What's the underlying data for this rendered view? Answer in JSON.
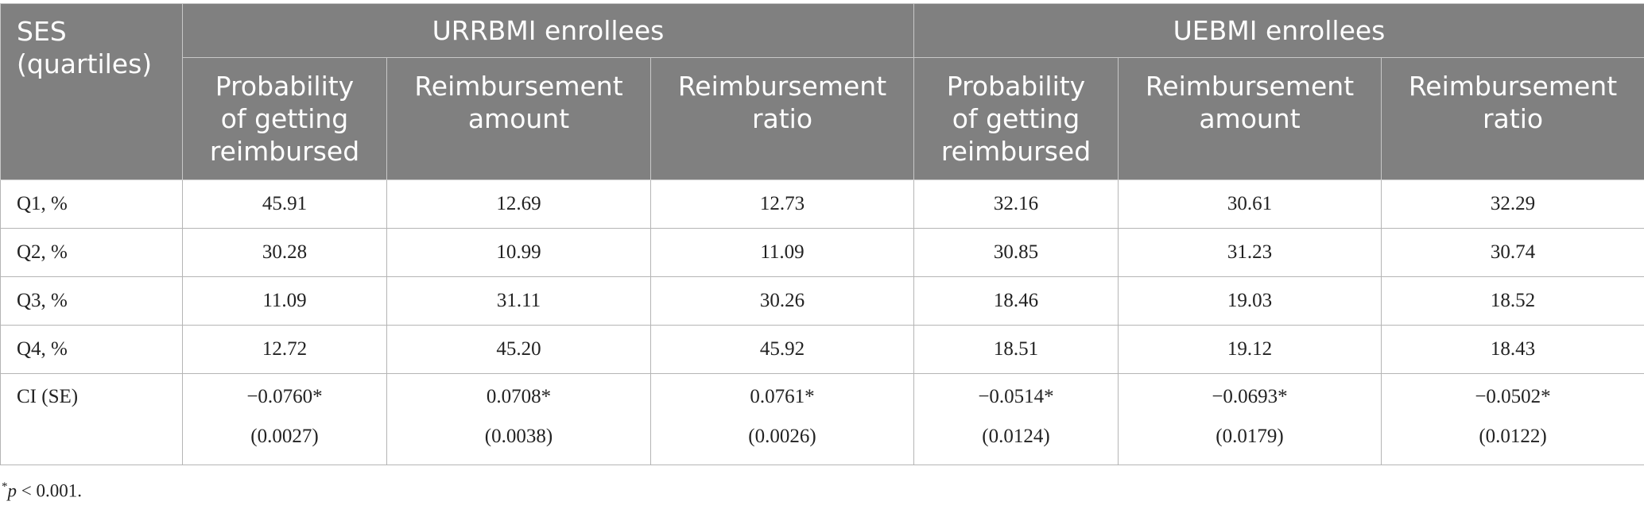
{
  "header": {
    "ses_label_line1": "SES",
    "ses_label_line2": "(quartiles)",
    "group_urrbmi": "URRBMI enrollees",
    "group_uebmi": "UEBMI enrollees",
    "subcolumns": [
      {
        "line1": "Probability",
        "line2": "of getting",
        "line3": "reimbursed"
      },
      {
        "line1": "Reimbursement",
        "line2": "amount"
      },
      {
        "line1": "Reimbursement",
        "line2": "ratio"
      },
      {
        "line1": "Probability",
        "line2": "of getting",
        "line3": "reimbursed"
      },
      {
        "line1": "Reimbursement",
        "line2": "amount"
      },
      {
        "line1": "Reimbursement",
        "line2": "ratio"
      }
    ]
  },
  "rows": [
    {
      "label": "Q1, %",
      "values": [
        "45.91",
        "12.69",
        "12.73",
        "32.16",
        "30.61",
        "32.29"
      ]
    },
    {
      "label": "Q2, %",
      "values": [
        "30.28",
        "10.99",
        "11.09",
        "30.85",
        "31.23",
        "30.74"
      ]
    },
    {
      "label": "Q3, %",
      "values": [
        "11.09",
        "31.11",
        "30.26",
        "18.46",
        "19.03",
        "18.52"
      ]
    },
    {
      "label": "Q4, %",
      "values": [
        "12.72",
        "45.20",
        "45.92",
        "18.51",
        "19.12",
        "18.43"
      ]
    }
  ],
  "ci_row": {
    "label": "CI (SE)",
    "values": [
      "−0.0760*",
      "0.0708*",
      "0.0761*",
      "−0.0514*",
      "−0.0693*",
      "−0.0502*"
    ],
    "se": [
      "(0.0027)",
      "(0.0038)",
      "(0.0026)",
      "(0.0124)",
      "(0.0179)",
      "(0.0122)"
    ]
  },
  "footnote": {
    "marker": "*",
    "p": "p",
    "text": " < 0.001."
  },
  "colors": {
    "header_bg": "#808080",
    "header_text": "#ffffff",
    "border": "#b5b5b5"
  }
}
